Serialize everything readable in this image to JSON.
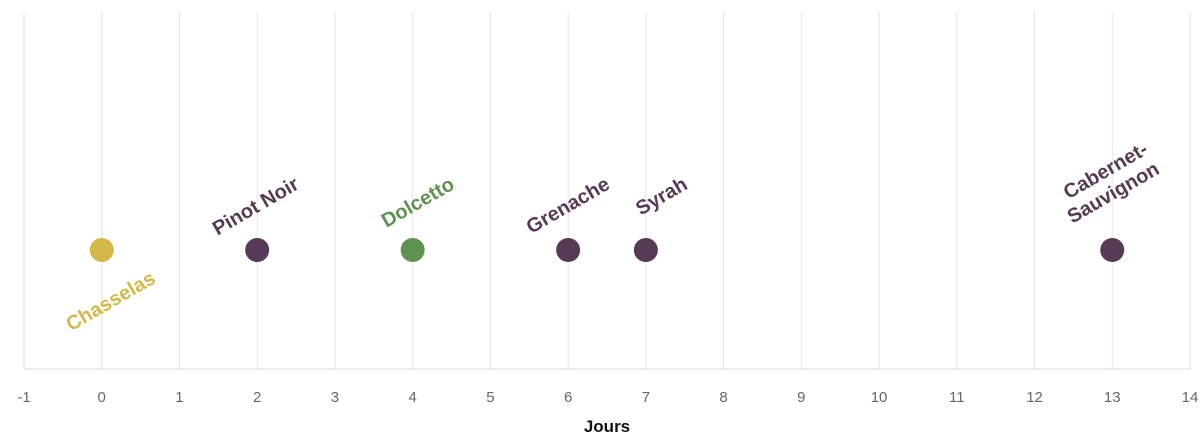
{
  "chart_data": {
    "type": "scatter",
    "xlabel": "Jours",
    "xlim": [
      -1,
      14
    ],
    "x_ticks": [
      -1,
      0,
      1,
      2,
      3,
      4,
      5,
      6,
      7,
      8,
      9,
      10,
      11,
      12,
      13,
      14
    ],
    "grid": true,
    "points": [
      {
        "label": "Chasselas",
        "x": 0,
        "color": "#d4b84a",
        "label_position": "below"
      },
      {
        "label": "Pinot Noir",
        "x": 2,
        "color": "#573a56",
        "label_position": "above"
      },
      {
        "label": "Dolcetto",
        "x": 4,
        "color": "#5e9250",
        "label_position": "above"
      },
      {
        "label": "Grenache",
        "x": 6,
        "color": "#573a56",
        "label_position": "above"
      },
      {
        "label": "Syrah",
        "x": 7,
        "color": "#573a56",
        "label_position": "above"
      },
      {
        "label": "Cabernet-Sauvignon",
        "label_lines": [
          "Cabernet-",
          "Sauvignon"
        ],
        "x": 13,
        "color": "#573a56",
        "label_position": "above"
      }
    ]
  }
}
